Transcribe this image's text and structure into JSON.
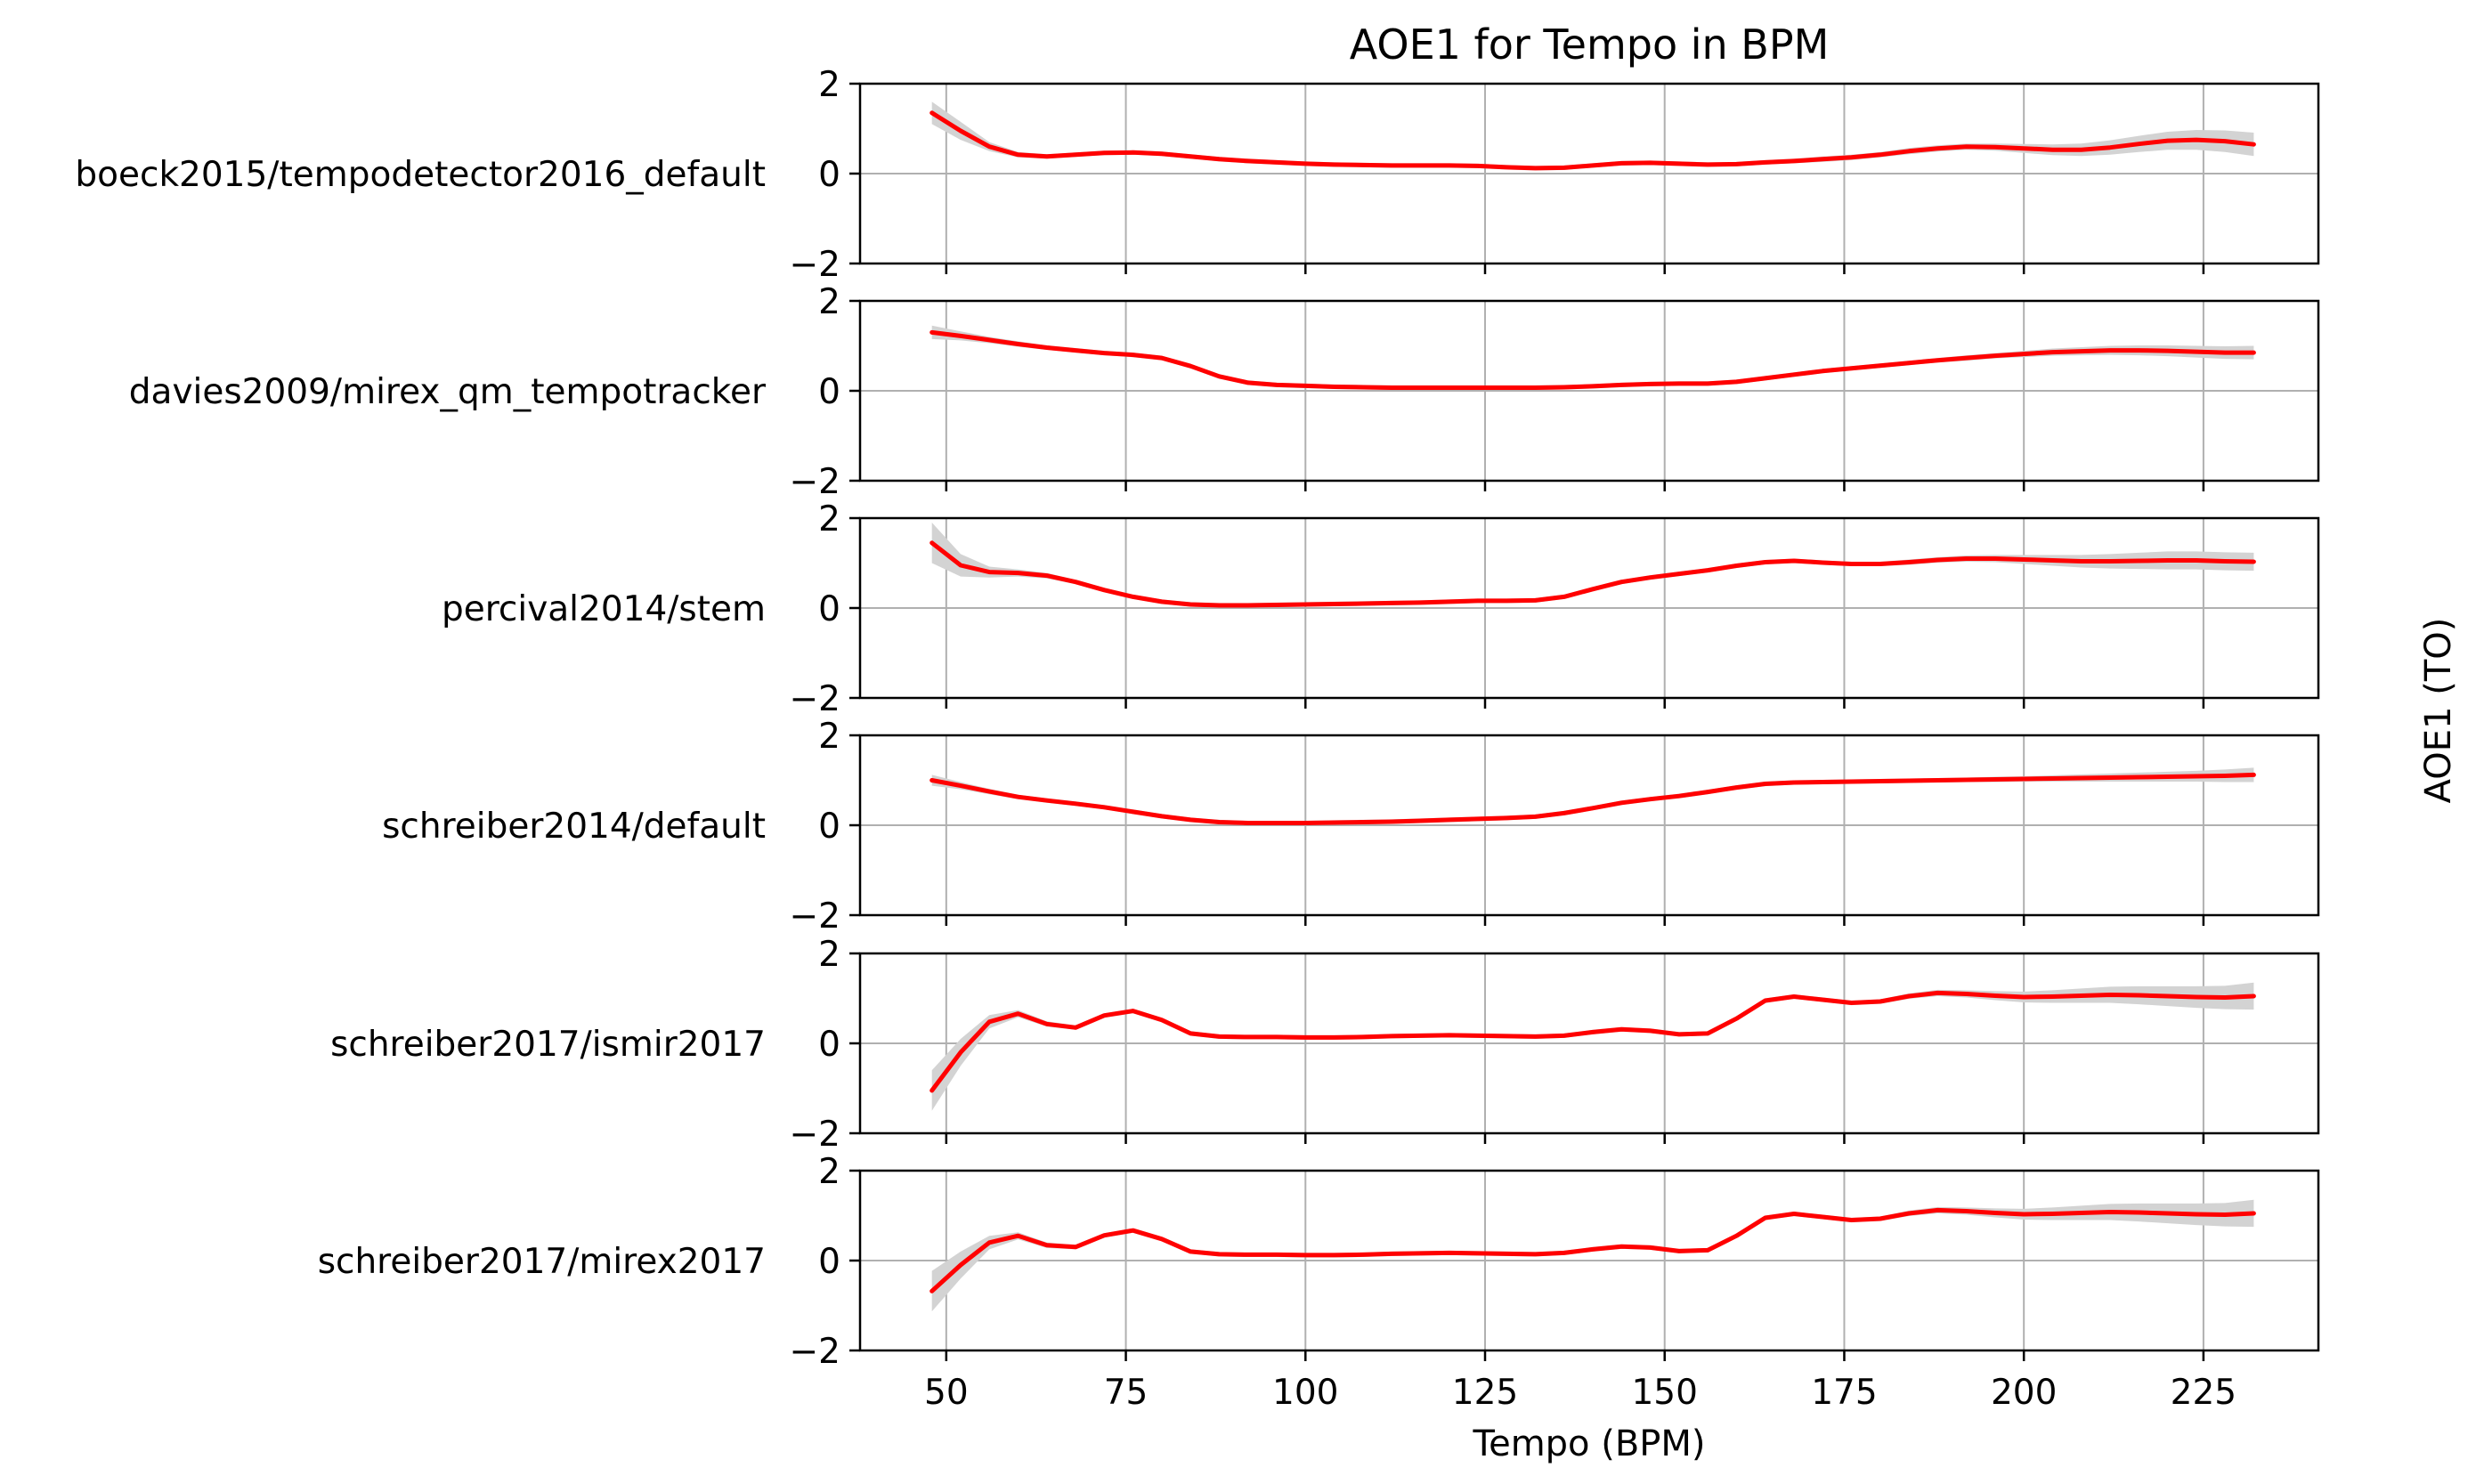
{
  "chart_data": {
    "type": "line",
    "title": "AOE1 for Tempo in BPM",
    "xlabel": "Tempo (BPM)",
    "ylabel": "AOE1 (TO)",
    "xlim": [
      38,
      241
    ],
    "ylim": [
      -2,
      2
    ],
    "xticks": [
      50,
      75,
      100,
      125,
      150,
      175,
      200,
      225
    ],
    "yticks": [
      -2,
      0,
      2
    ],
    "grid": true,
    "line_color": "#ff0000",
    "band_color": "#d3d3d3",
    "x": [
      48,
      52,
      56,
      60,
      64,
      68,
      72,
      76,
      80,
      84,
      88,
      92,
      96,
      100,
      104,
      108,
      112,
      116,
      120,
      124,
      128,
      132,
      136,
      140,
      144,
      148,
      152,
      156,
      160,
      164,
      168,
      172,
      176,
      180,
      184,
      188,
      192,
      196,
      200,
      204,
      208,
      212,
      216,
      220,
      224,
      228,
      232
    ],
    "series": [
      {
        "name": "boeck2015/tempodetector2016_default",
        "values": [
          1.35,
          0.95,
          0.6,
          0.42,
          0.38,
          0.42,
          0.46,
          0.47,
          0.44,
          0.38,
          0.32,
          0.28,
          0.25,
          0.22,
          0.2,
          0.19,
          0.18,
          0.18,
          0.18,
          0.17,
          0.14,
          0.12,
          0.13,
          0.18,
          0.23,
          0.24,
          0.22,
          0.2,
          0.21,
          0.25,
          0.28,
          0.32,
          0.36,
          0.42,
          0.5,
          0.56,
          0.6,
          0.59,
          0.56,
          0.53,
          0.53,
          0.58,
          0.66,
          0.73,
          0.75,
          0.72,
          0.65
        ],
        "band": [
          0.25,
          0.2,
          0.1,
          0.06,
          0.05,
          0.05,
          0.05,
          0.05,
          0.05,
          0.05,
          0.05,
          0.05,
          0.05,
          0.05,
          0.05,
          0.05,
          0.05,
          0.05,
          0.05,
          0.05,
          0.05,
          0.05,
          0.05,
          0.05,
          0.05,
          0.05,
          0.05,
          0.05,
          0.05,
          0.05,
          0.05,
          0.06,
          0.06,
          0.06,
          0.07,
          0.07,
          0.07,
          0.08,
          0.1,
          0.12,
          0.14,
          0.16,
          0.18,
          0.2,
          0.22,
          0.24,
          0.26
        ]
      },
      {
        "name": "davies2009/mirex_qm_tempotracker",
        "values": [
          1.3,
          1.22,
          1.13,
          1.04,
          0.96,
          0.9,
          0.84,
          0.8,
          0.73,
          0.55,
          0.32,
          0.18,
          0.13,
          0.11,
          0.09,
          0.08,
          0.07,
          0.07,
          0.07,
          0.07,
          0.07,
          0.07,
          0.08,
          0.1,
          0.13,
          0.15,
          0.16,
          0.16,
          0.2,
          0.28,
          0.36,
          0.44,
          0.5,
          0.56,
          0.62,
          0.68,
          0.73,
          0.78,
          0.82,
          0.86,
          0.88,
          0.9,
          0.9,
          0.89,
          0.87,
          0.85,
          0.85
        ],
        "band": [
          0.15,
          0.1,
          0.07,
          0.06,
          0.05,
          0.05,
          0.05,
          0.05,
          0.05,
          0.05,
          0.05,
          0.05,
          0.05,
          0.05,
          0.05,
          0.05,
          0.05,
          0.05,
          0.05,
          0.05,
          0.05,
          0.05,
          0.05,
          0.05,
          0.05,
          0.05,
          0.05,
          0.05,
          0.05,
          0.05,
          0.05,
          0.05,
          0.05,
          0.05,
          0.05,
          0.05,
          0.06,
          0.06,
          0.07,
          0.08,
          0.09,
          0.1,
          0.11,
          0.12,
          0.13,
          0.14,
          0.15
        ]
      },
      {
        "name": "percival2014/stem",
        "values": [
          1.45,
          0.95,
          0.8,
          0.78,
          0.72,
          0.58,
          0.4,
          0.25,
          0.14,
          0.08,
          0.06,
          0.06,
          0.07,
          0.08,
          0.09,
          0.1,
          0.11,
          0.12,
          0.14,
          0.16,
          0.16,
          0.17,
          0.25,
          0.42,
          0.58,
          0.68,
          0.76,
          0.84,
          0.94,
          1.02,
          1.05,
          1.01,
          0.98,
          0.98,
          1.02,
          1.07,
          1.1,
          1.1,
          1.08,
          1.06,
          1.04,
          1.04,
          1.05,
          1.06,
          1.06,
          1.04,
          1.03
        ],
        "band": [
          0.45,
          0.25,
          0.12,
          0.08,
          0.06,
          0.05,
          0.05,
          0.05,
          0.05,
          0.05,
          0.05,
          0.05,
          0.05,
          0.05,
          0.05,
          0.05,
          0.05,
          0.05,
          0.05,
          0.05,
          0.05,
          0.05,
          0.05,
          0.05,
          0.05,
          0.05,
          0.05,
          0.05,
          0.05,
          0.05,
          0.05,
          0.05,
          0.05,
          0.05,
          0.06,
          0.06,
          0.07,
          0.08,
          0.1,
          0.12,
          0.14,
          0.16,
          0.18,
          0.2,
          0.2,
          0.2,
          0.2
        ]
      },
      {
        "name": "schreiber2014/default",
        "values": [
          1.0,
          0.88,
          0.75,
          0.63,
          0.55,
          0.48,
          0.4,
          0.3,
          0.2,
          0.12,
          0.07,
          0.05,
          0.05,
          0.05,
          0.06,
          0.07,
          0.08,
          0.1,
          0.12,
          0.14,
          0.16,
          0.19,
          0.27,
          0.38,
          0.5,
          0.58,
          0.65,
          0.74,
          0.84,
          0.92,
          0.95,
          0.96,
          0.97,
          0.98,
          0.99,
          1.0,
          1.01,
          1.02,
          1.03,
          1.04,
          1.05,
          1.06,
          1.07,
          1.08,
          1.09,
          1.1,
          1.12
        ],
        "band": [
          0.12,
          0.08,
          0.06,
          0.05,
          0.05,
          0.05,
          0.05,
          0.05,
          0.05,
          0.05,
          0.05,
          0.05,
          0.05,
          0.05,
          0.05,
          0.05,
          0.05,
          0.05,
          0.05,
          0.05,
          0.05,
          0.05,
          0.05,
          0.05,
          0.05,
          0.05,
          0.05,
          0.05,
          0.05,
          0.05,
          0.05,
          0.05,
          0.05,
          0.05,
          0.05,
          0.05,
          0.05,
          0.06,
          0.06,
          0.07,
          0.08,
          0.09,
          0.1,
          0.11,
          0.12,
          0.14,
          0.16
        ]
      },
      {
        "name": "schreiber2017/ismir2017",
        "values": [
          -1.05,
          -0.2,
          0.48,
          0.66,
          0.43,
          0.35,
          0.62,
          0.72,
          0.52,
          0.22,
          0.15,
          0.14,
          0.14,
          0.13,
          0.13,
          0.14,
          0.16,
          0.17,
          0.18,
          0.17,
          0.16,
          0.15,
          0.17,
          0.25,
          0.31,
          0.28,
          0.2,
          0.22,
          0.55,
          0.95,
          1.04,
          0.97,
          0.9,
          0.93,
          1.05,
          1.12,
          1.1,
          1.06,
          1.03,
          1.04,
          1.06,
          1.08,
          1.07,
          1.05,
          1.03,
          1.02,
          1.05
        ],
        "band": [
          0.45,
          0.3,
          0.15,
          0.08,
          0.06,
          0.05,
          0.05,
          0.05,
          0.05,
          0.05,
          0.05,
          0.05,
          0.05,
          0.05,
          0.05,
          0.05,
          0.05,
          0.05,
          0.05,
          0.05,
          0.05,
          0.05,
          0.05,
          0.05,
          0.05,
          0.05,
          0.05,
          0.05,
          0.05,
          0.05,
          0.05,
          0.05,
          0.05,
          0.05,
          0.06,
          0.07,
          0.08,
          0.1,
          0.12,
          0.14,
          0.16,
          0.18,
          0.2,
          0.22,
          0.24,
          0.26,
          0.3
        ]
      },
      {
        "name": "schreiber2017/mirex2017",
        "values": [
          -0.68,
          -0.1,
          0.4,
          0.55,
          0.34,
          0.3,
          0.56,
          0.67,
          0.48,
          0.2,
          0.14,
          0.13,
          0.13,
          0.12,
          0.12,
          0.13,
          0.15,
          0.16,
          0.17,
          0.16,
          0.15,
          0.14,
          0.17,
          0.25,
          0.31,
          0.29,
          0.21,
          0.23,
          0.55,
          0.95,
          1.04,
          0.97,
          0.9,
          0.93,
          1.05,
          1.12,
          1.1,
          1.06,
          1.03,
          1.04,
          1.06,
          1.08,
          1.07,
          1.05,
          1.03,
          1.02,
          1.05
        ],
        "band": [
          0.45,
          0.3,
          0.15,
          0.08,
          0.06,
          0.05,
          0.05,
          0.05,
          0.05,
          0.05,
          0.05,
          0.05,
          0.05,
          0.05,
          0.05,
          0.05,
          0.05,
          0.05,
          0.05,
          0.05,
          0.05,
          0.05,
          0.05,
          0.05,
          0.05,
          0.05,
          0.05,
          0.05,
          0.05,
          0.05,
          0.05,
          0.05,
          0.05,
          0.05,
          0.06,
          0.07,
          0.08,
          0.1,
          0.12,
          0.14,
          0.16,
          0.18,
          0.2,
          0.22,
          0.24,
          0.26,
          0.3
        ]
      }
    ]
  }
}
